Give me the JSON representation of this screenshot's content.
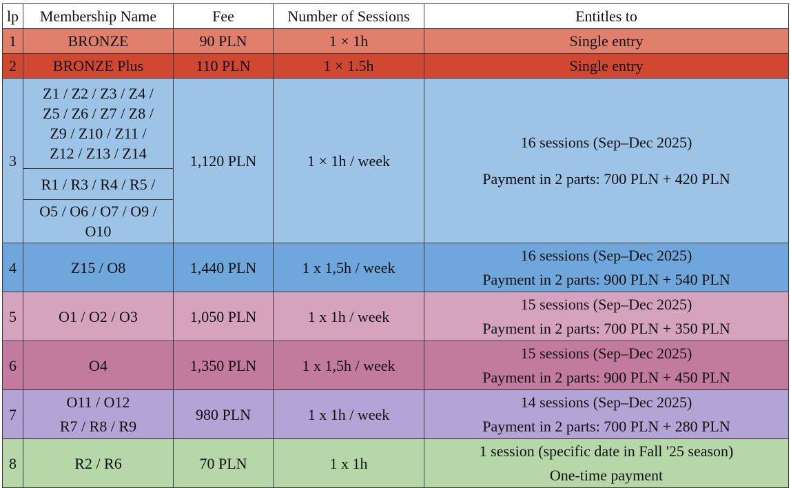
{
  "headers": [
    "lp",
    "Membership Name",
    "Fee",
    "Number of Sessions",
    "Entitles to"
  ],
  "rows": [
    {
      "lp": "1",
      "name": "BRONZE",
      "fee": "90 PLN",
      "sessions": "1 × 1h",
      "ent1": "Single entry"
    },
    {
      "lp": "2",
      "name": "BRONZE Plus",
      "fee": "110 PLN",
      "sessions": "1 × 1.5h",
      "ent1": "Single entry"
    },
    {
      "lp": "3",
      "name_lines": [
        "Z1 / Z2 / Z3 / Z4 /",
        "Z5 / Z6 /  Z7 / Z8 /",
        "Z9 / Z10 / Z11 /",
        "Z12 / Z13 / Z14"
      ],
      "name_r": "R1 / R3 / R4 / R5 /",
      "name_o": [
        "O5 / O6 / O7 / O9 /",
        "O10"
      ],
      "fee": "1,120 PLN",
      "sessions": "1 × 1h / week",
      "ent1": "16 sessions (Sep–Dec 2025)",
      "ent2": "Payment in 2 parts: 700 PLN + 420 PLN"
    },
    {
      "lp": "4",
      "name": "Z15 / O8",
      "fee": "1,440 PLN",
      "sessions": "1 x 1,5h / week",
      "ent1": "16 sessions (Sep–Dec 2025)",
      "ent2": "Payment in 2 parts: 900 PLN + 540 PLN"
    },
    {
      "lp": "5",
      "name": "O1 / O2 / O3",
      "fee": "1,050 PLN",
      "sessions": "1 x 1h / week",
      "ent1": "15 sessions (Sep–Dec 2025)",
      "ent2": "Payment in 2 parts: 700 PLN + 350 PLN"
    },
    {
      "lp": "6",
      "name": "O4",
      "fee": "1,350 PLN",
      "sessions": "1 x 1,5h / week",
      "ent1": "15 sessions (Sep–Dec 2025)",
      "ent2": "Payment in 2 parts: 900 PLN + 450 PLN"
    },
    {
      "lp": "7",
      "name_lines": [
        "O11 / O12",
        "R7 / R8 / R9"
      ],
      "fee": "980 PLN",
      "sessions": "1 x 1h / week",
      "ent1": "14 sessions (Sep–Dec 2025)",
      "ent2": "Payment in 2 parts: 700 PLN + 280 PLN"
    },
    {
      "lp": "8",
      "name": "R2 / R6",
      "fee": "70 PLN",
      "sessions": "1 x 1h",
      "ent1": "1 session (specific date in Fall '25 season)",
      "ent2": "One-time payment"
    }
  ],
  "colors": {
    "row1": "#e07f6c",
    "row2": "#d04832",
    "row3": "#9dc3e6",
    "row4": "#6fa7dc",
    "row5": "#d6a3bf",
    "row6": "#c27a9e",
    "row7": "#b2a4d5",
    "row8": "#b6d7a8"
  }
}
